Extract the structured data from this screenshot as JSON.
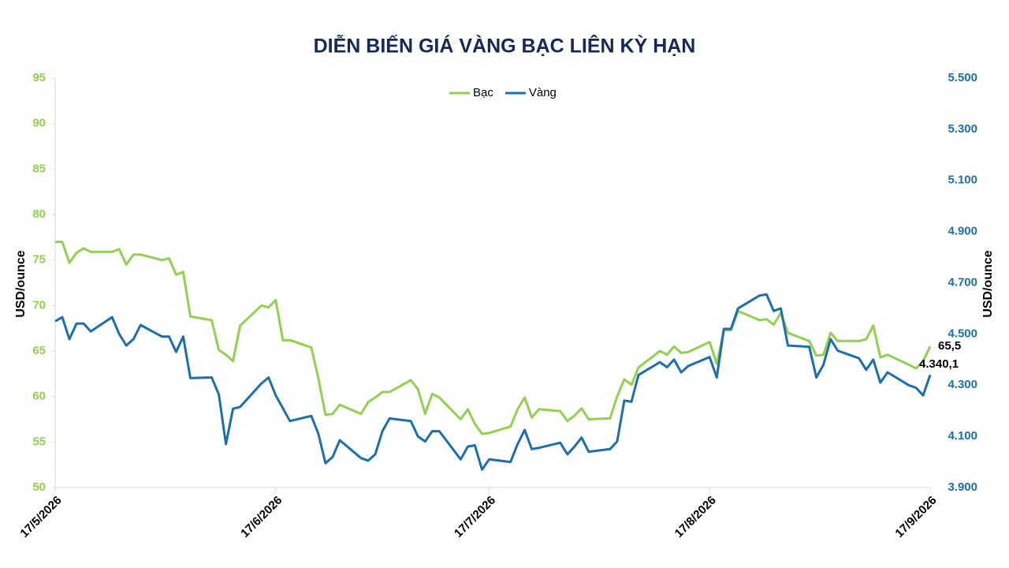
{
  "chart_data": {
    "type": "line",
    "title": "DIỄN BIẾN GIÁ VÀNG BẠC LIÊN KỲ HẠN",
    "y_label": "USD/ounce",
    "y2_label": "USD/ounce",
    "x": [
      "2026-05-17",
      "2026-05-18",
      "2026-05-19",
      "2026-05-20",
      "2026-05-21",
      "2026-05-22",
      "2026-05-25",
      "2026-05-26",
      "2026-05-27",
      "2026-05-28",
      "2026-05-29",
      "2026-06-01",
      "2026-06-02",
      "2026-06-03",
      "2026-06-04",
      "2026-06-05",
      "2026-06-08",
      "2026-06-09",
      "2026-06-10",
      "2026-06-11",
      "2026-06-12",
      "2026-06-15",
      "2026-06-16",
      "2026-06-17",
      "2026-06-18",
      "2026-06-19",
      "2026-06-22",
      "2026-06-23",
      "2026-06-24",
      "2026-06-25",
      "2026-06-26",
      "2026-06-29",
      "2026-06-30",
      "2026-07-01",
      "2026-07-02",
      "2026-07-03",
      "2026-07-06",
      "2026-07-07",
      "2026-07-08",
      "2026-07-09",
      "2026-07-10",
      "2026-07-13",
      "2026-07-14",
      "2026-07-15",
      "2026-07-16",
      "2026-07-17",
      "2026-07-20",
      "2026-07-21",
      "2026-07-22",
      "2026-07-23",
      "2026-07-24",
      "2026-07-27",
      "2026-07-28",
      "2026-07-29",
      "2026-07-30",
      "2026-07-31",
      "2026-08-03",
      "2026-08-04",
      "2026-08-05",
      "2026-08-06",
      "2026-08-07",
      "2026-08-10",
      "2026-08-11",
      "2026-08-12",
      "2026-08-13",
      "2026-08-14",
      "2026-08-17",
      "2026-08-18",
      "2026-08-19",
      "2026-08-20",
      "2026-08-21",
      "2026-08-24",
      "2026-08-25",
      "2026-08-26",
      "2026-08-27",
      "2026-08-28",
      "2026-08-31",
      "2026-09-01",
      "2026-09-02",
      "2026-09-03",
      "2026-09-04",
      "2026-09-07",
      "2026-09-08",
      "2026-09-09",
      "2026-09-10",
      "2026-09-11",
      "2026-09-14",
      "2026-09-15",
      "2026-09-16",
      "2026-09-17"
    ],
    "xlim": [
      "2026-05-17",
      "2026-09-17"
    ],
    "xticks": [
      {
        "value": "2026-05-17",
        "label": "17/5/2026"
      },
      {
        "value": "2026-06-17",
        "label": "17/6/2026"
      },
      {
        "value": "2026-07-17",
        "label": "17/7/2026"
      },
      {
        "value": "2026-08-17",
        "label": "17/8/2026"
      },
      {
        "value": "2026-09-17",
        "label": "17/9/2026"
      }
    ],
    "ylim": [
      50,
      95
    ],
    "yticks": [
      50,
      55,
      60,
      65,
      70,
      75,
      80,
      85,
      90,
      95
    ],
    "y2lim": [
      3900,
      5500
    ],
    "y2ticks": [
      {
        "value": 3900,
        "label": "3.900"
      },
      {
        "value": 4100,
        "label": "4.100"
      },
      {
        "value": 4300,
        "label": "4.300"
      },
      {
        "value": 4500,
        "label": "4.500"
      },
      {
        "value": 4700,
        "label": "4.700"
      },
      {
        "value": 4900,
        "label": "4.900"
      },
      {
        "value": 5100,
        "label": "5.100"
      },
      {
        "value": 5300,
        "label": "5.300"
      },
      {
        "value": 5500,
        "label": "5.500"
      }
    ],
    "legend": "top",
    "series": [
      {
        "name": "Bạc",
        "color": "#92d050",
        "axis": "y",
        "values": [
          77.0,
          77.0,
          74.7,
          75.8,
          76.3,
          75.9,
          75.9,
          76.2,
          74.5,
          75.6,
          75.6,
          75.0,
          75.2,
          73.4,
          73.7,
          68.8,
          68.4,
          65.1,
          64.6,
          63.9,
          67.8,
          70.0,
          69.8,
          70.6,
          66.2,
          66.2,
          65.4,
          62.0,
          58.0,
          58.1,
          59.1,
          58.1,
          59.4,
          59.9,
          60.5,
          60.5,
          61.8,
          60.8,
          58.1,
          60.3,
          59.9,
          57.5,
          58.6,
          57.0,
          55.9,
          56.0,
          56.7,
          58.6,
          59.9,
          57.7,
          58.6,
          58.4,
          57.3,
          57.9,
          58.7,
          57.5,
          57.6,
          60.0,
          61.9,
          61.3,
          63.2,
          65.0,
          64.6,
          65.5,
          64.8,
          64.9,
          66.0,
          63.6,
          67.3,
          67.3,
          69.4,
          68.4,
          68.5,
          67.9,
          69.2,
          67.0,
          66.1,
          64.5,
          64.6,
          67.0,
          66.1,
          66.1,
          66.3,
          67.8,
          64.3,
          64.6,
          63.5,
          63.1,
          63.9,
          65.5
        ],
        "value_labels": [
          null,
          null,
          null,
          null,
          null,
          null,
          null,
          null,
          null,
          null,
          null,
          null,
          null,
          null,
          null,
          null,
          null,
          null,
          null,
          null,
          null,
          null,
          null,
          null,
          null,
          null,
          null,
          null,
          null,
          null,
          null,
          null,
          null,
          null,
          null,
          null,
          null,
          null,
          null,
          null,
          null,
          null,
          null,
          null,
          null,
          null,
          null,
          null,
          null,
          null,
          null,
          null,
          null,
          null,
          null,
          null,
          null,
          null,
          null,
          null,
          null,
          null,
          null,
          null,
          null,
          null,
          null,
          null,
          null,
          null,
          null,
          null,
          null,
          null,
          null,
          null,
          null,
          null,
          null,
          null,
          null,
          null,
          null,
          null,
          null,
          null,
          null,
          null,
          null,
          "65,5"
        ]
      },
      {
        "name": "Vàng",
        "color": "#1b6fb0",
        "axis": "y2",
        "values": [
          4550,
          4566,
          4480,
          4541,
          4541,
          4510,
          4566,
          4500,
          4455,
          4480,
          4535,
          4490,
          4490,
          4430,
          4490,
          4328,
          4330,
          4264,
          4070,
          4208,
          4215,
          4307,
          4330,
          4260,
          4210,
          4160,
          4180,
          4110,
          3995,
          4020,
          4085,
          4015,
          4005,
          4030,
          4120,
          4170,
          4160,
          4100,
          4080,
          4120,
          4120,
          4010,
          4060,
          4065,
          3970,
          4010,
          4000,
          4070,
          4125,
          4050,
          4055,
          4075,
          4030,
          4060,
          4095,
          4040,
          4050,
          4080,
          4240,
          4235,
          4340,
          4390,
          4370,
          4400,
          4350,
          4375,
          4410,
          4330,
          4520,
          4520,
          4600,
          4650,
          4655,
          4590,
          4600,
          4455,
          4450,
          4330,
          4380,
          4480,
          4435,
          4405,
          4360,
          4400,
          4310,
          4350,
          4300,
          4290,
          4260,
          4340.1
        ],
        "value_labels": [
          null,
          null,
          null,
          null,
          null,
          null,
          null,
          null,
          null,
          null,
          null,
          null,
          null,
          null,
          null,
          null,
          null,
          null,
          null,
          null,
          null,
          null,
          null,
          null,
          null,
          null,
          null,
          null,
          null,
          null,
          null,
          null,
          null,
          null,
          null,
          null,
          null,
          null,
          null,
          null,
          null,
          null,
          null,
          null,
          null,
          null,
          null,
          null,
          null,
          null,
          null,
          null,
          null,
          null,
          null,
          null,
          null,
          null,
          null,
          null,
          null,
          null,
          null,
          null,
          null,
          null,
          null,
          null,
          null,
          null,
          null,
          null,
          null,
          null,
          null,
          null,
          null,
          null,
          null,
          null,
          null,
          null,
          null,
          null,
          null,
          null,
          null,
          null,
          null,
          "4.340,1"
        ]
      }
    ]
  }
}
